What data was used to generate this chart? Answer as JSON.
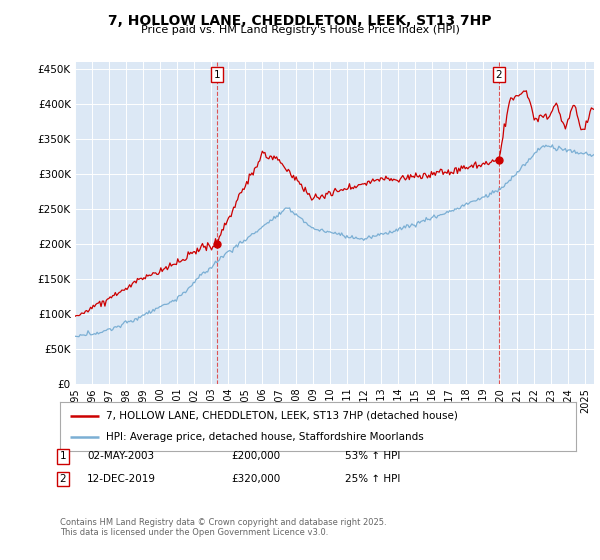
{
  "title": "7, HOLLOW LANE, CHEDDLETON, LEEK, ST13 7HP",
  "subtitle": "Price paid vs. HM Land Registry's House Price Index (HPI)",
  "ylabel_ticks": [
    "£0",
    "£50K",
    "£100K",
    "£150K",
    "£200K",
    "£250K",
    "£300K",
    "£350K",
    "£400K",
    "£450K"
  ],
  "ytick_values": [
    0,
    50000,
    100000,
    150000,
    200000,
    250000,
    300000,
    350000,
    400000,
    450000
  ],
  "ylim": [
    0,
    460000
  ],
  "xlim_start": 1995.0,
  "xlim_end": 2025.5,
  "red_color": "#cc0000",
  "blue_color": "#7bafd4",
  "plot_bg_color": "#dce8f5",
  "vline_color": "#dd4444",
  "transaction1": {
    "date": "02-MAY-2003",
    "price": 200000,
    "hpi_pct": "53% ↑ HPI",
    "label": "1",
    "x": 2003.33
  },
  "transaction2": {
    "date": "12-DEC-2019",
    "price": 320000,
    "hpi_pct": "25% ↑ HPI",
    "label": "2",
    "x": 2019.92
  },
  "legend_line1": "7, HOLLOW LANE, CHEDDLETON, LEEK, ST13 7HP (detached house)",
  "legend_line2": "HPI: Average price, detached house, Staffordshire Moorlands",
  "footer": "Contains HM Land Registry data © Crown copyright and database right 2025.\nThis data is licensed under the Open Government Licence v3.0.",
  "background_color": "#ffffff"
}
